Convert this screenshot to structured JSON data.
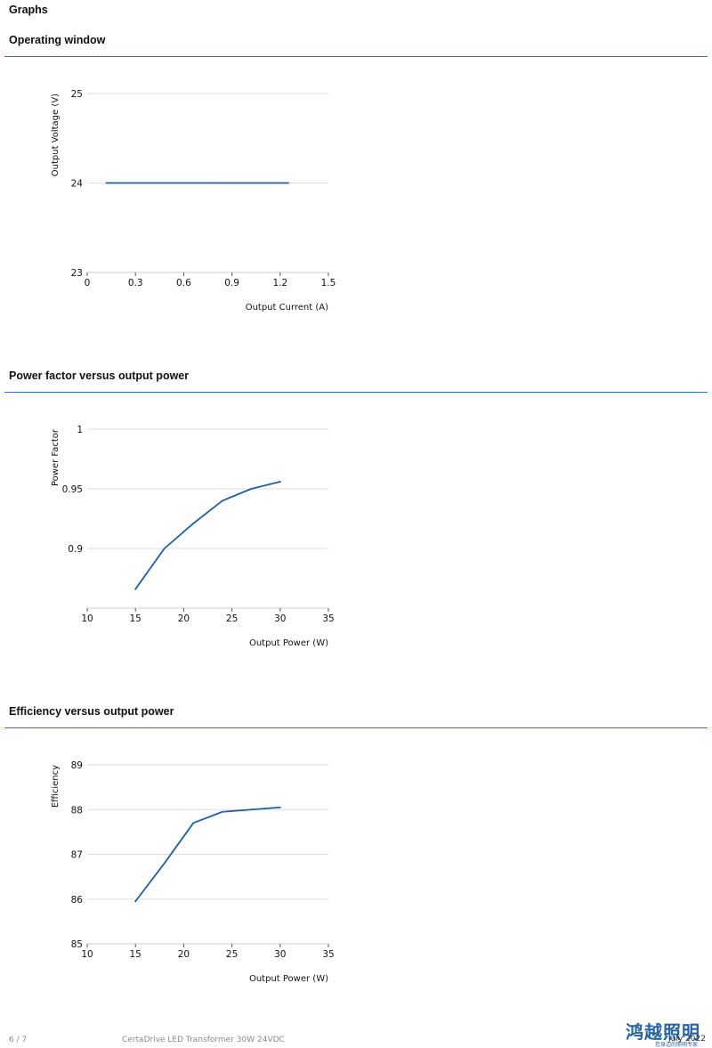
{
  "page": {
    "heading": "Graphs"
  },
  "sections": [
    {
      "title": "Operating window"
    },
    {
      "title": "Power factor versus output power"
    },
    {
      "title": "Efficiency versus output power"
    }
  ],
  "chart_data": [
    {
      "type": "line",
      "xlabel": "Output Current (A)",
      "ylabel": "Output Voltage (V)",
      "xlim": [
        0,
        1.5
      ],
      "ylim": [
        23,
        25
      ],
      "xticks": [
        "0",
        "0.3",
        "0.6",
        "0.9",
        "1.2",
        "1.5"
      ],
      "yticks": [
        "23",
        "24",
        "25"
      ],
      "grid": true,
      "color": "#1f5fa6",
      "series": [
        {
          "x": [
            0.12,
            1.25
          ],
          "y": [
            24,
            24
          ]
        }
      ]
    },
    {
      "type": "line",
      "xlabel": "Output Power (W)",
      "ylabel": "Power Factor",
      "xlim": [
        10,
        35
      ],
      "ylim": [
        0.85,
        1
      ],
      "xticks": [
        "10",
        "15",
        "20",
        "25",
        "30",
        "35"
      ],
      "yticks": [
        "0.9",
        "0.95",
        "1"
      ],
      "grid": true,
      "color": "#1f5fa6",
      "series": [
        {
          "x": [
            15,
            18,
            21,
            24,
            27,
            30
          ],
          "y": [
            0.866,
            0.9,
            0.921,
            0.94,
            0.95,
            0.956
          ]
        }
      ]
    },
    {
      "type": "line",
      "xlabel": "Output Power (W)",
      "ylabel": "Efficiency",
      "xlim": [
        10,
        35
      ],
      "ylim": [
        85,
        89
      ],
      "xticks": [
        "10",
        "15",
        "20",
        "25",
        "30",
        "35"
      ],
      "yticks": [
        "85",
        "86",
        "87",
        "88",
        "89"
      ],
      "grid": true,
      "color": "#1f5fa6",
      "series": [
        {
          "x": [
            15,
            18,
            21,
            24,
            27,
            30
          ],
          "y": [
            85.95,
            86.8,
            87.7,
            87.95,
            88.0,
            88.05
          ]
        }
      ]
    }
  ],
  "footer": {
    "page_number": "6 / 7",
    "product": "CertaDrive LED Transformer 30W 24VDC",
    "date": "July 2022",
    "logo_text": "鸿越照明",
    "logo_subtext": "您身边的照明专家"
  }
}
